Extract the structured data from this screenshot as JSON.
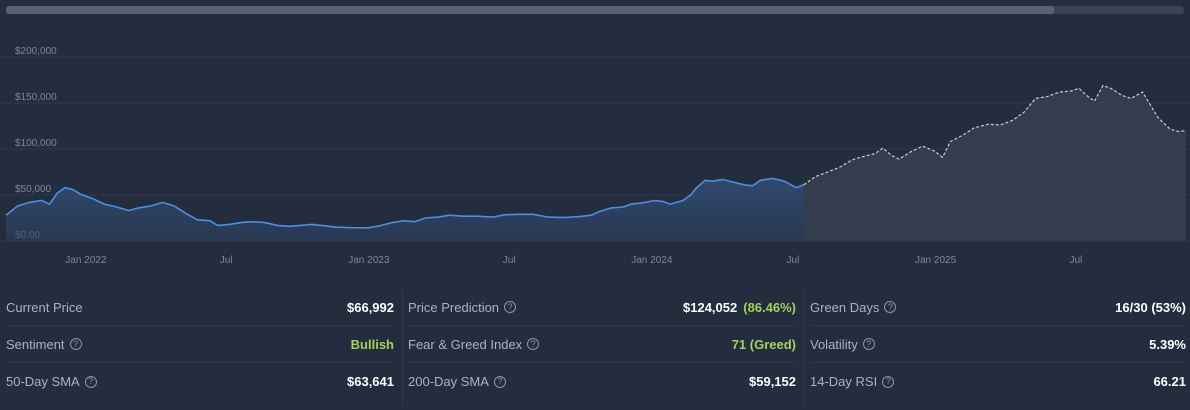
{
  "chart_data": {
    "type": "area",
    "y_ticks": [
      "$0.00",
      "$50,000",
      "$100,000",
      "$150,000",
      "$200,000"
    ],
    "y_tick_values": [
      0,
      50000,
      100000,
      150000,
      200000
    ],
    "ylim": [
      0,
      200000
    ],
    "x_ticks": [
      {
        "label": "Jan 2022",
        "date": "2022-01-01"
      },
      {
        "label": "Jul",
        "date": "2022-07-01"
      },
      {
        "label": "Jan 2023",
        "date": "2023-01-01"
      },
      {
        "label": "Jul",
        "date": "2023-07-01"
      },
      {
        "label": "Jan 2024",
        "date": "2024-01-01"
      },
      {
        "label": "Jul",
        "date": "2024-07-01"
      },
      {
        "label": "Jan 2025",
        "date": "2025-01-01"
      },
      {
        "label": "Jul",
        "date": "2025-07-01"
      }
    ],
    "xlim": [
      "2021-09-20",
      "2025-11-20"
    ],
    "grid": true,
    "series": [
      {
        "role": "historical",
        "style": "solid-area",
        "color": "#4a90e2",
        "points": [
          [
            "2021-09-20",
            28000
          ],
          [
            "2021-10-05",
            38000
          ],
          [
            "2021-10-20",
            42000
          ],
          [
            "2021-11-05",
            44000
          ],
          [
            "2021-11-15",
            40000
          ],
          [
            "2021-11-25",
            52000
          ],
          [
            "2021-12-05",
            58000
          ],
          [
            "2021-12-15",
            56000
          ],
          [
            "2021-12-25",
            51000
          ],
          [
            "2022-01-10",
            46000
          ],
          [
            "2022-01-25",
            40000
          ],
          [
            "2022-02-10",
            37000
          ],
          [
            "2022-02-25",
            33000
          ],
          [
            "2022-03-10",
            36000
          ],
          [
            "2022-03-25",
            38000
          ],
          [
            "2022-04-10",
            42000
          ],
          [
            "2022-04-25",
            38000
          ],
          [
            "2022-05-10",
            30000
          ],
          [
            "2022-05-25",
            23000
          ],
          [
            "2022-06-10",
            22000
          ],
          [
            "2022-06-20",
            17000
          ],
          [
            "2022-07-05",
            18000
          ],
          [
            "2022-07-20",
            20000
          ],
          [
            "2022-08-05",
            21000
          ],
          [
            "2022-08-20",
            20000
          ],
          [
            "2022-09-05",
            17000
          ],
          [
            "2022-09-20",
            16000
          ],
          [
            "2022-10-05",
            17000
          ],
          [
            "2022-10-20",
            18000
          ],
          [
            "2022-11-05",
            16500
          ],
          [
            "2022-11-20",
            15000
          ],
          [
            "2022-12-10",
            14500
          ],
          [
            "2022-12-31",
            14300
          ],
          [
            "2023-01-15",
            16500
          ],
          [
            "2023-01-31",
            20000
          ],
          [
            "2023-02-15",
            22000
          ],
          [
            "2023-03-01",
            21000
          ],
          [
            "2023-03-15",
            25000
          ],
          [
            "2023-04-01",
            26000
          ],
          [
            "2023-04-15",
            28000
          ],
          [
            "2023-05-01",
            27000
          ],
          [
            "2023-05-20",
            27000
          ],
          [
            "2023-06-10",
            26000
          ],
          [
            "2023-06-25",
            28500
          ],
          [
            "2023-07-15",
            29000
          ],
          [
            "2023-08-01",
            29000
          ],
          [
            "2023-08-20",
            26000
          ],
          [
            "2023-09-10",
            25500
          ],
          [
            "2023-09-30",
            26500
          ],
          [
            "2023-10-15",
            28000
          ],
          [
            "2023-10-25",
            32000
          ],
          [
            "2023-11-10",
            36000
          ],
          [
            "2023-11-25",
            37000
          ],
          [
            "2023-12-05",
            40000
          ],
          [
            "2023-12-20",
            41500
          ],
          [
            "2024-01-05",
            44000
          ],
          [
            "2024-01-15",
            43000
          ],
          [
            "2024-01-25",
            40000
          ],
          [
            "2024-02-10",
            44000
          ],
          [
            "2024-02-20",
            50000
          ],
          [
            "2024-02-28",
            58000
          ],
          [
            "2024-03-10",
            66000
          ],
          [
            "2024-03-20",
            65000
          ],
          [
            "2024-04-01",
            67000
          ],
          [
            "2024-04-15",
            64000
          ],
          [
            "2024-04-30",
            61000
          ],
          [
            "2024-05-10",
            60000
          ],
          [
            "2024-05-20",
            66000
          ],
          [
            "2024-06-05",
            68000
          ],
          [
            "2024-06-20",
            65000
          ],
          [
            "2024-07-05",
            58000
          ],
          [
            "2024-07-15",
            61000
          ]
        ]
      },
      {
        "role": "prediction",
        "style": "dashed-area",
        "color": "#c8cdd6",
        "points": [
          [
            "2024-07-15",
            61000
          ],
          [
            "2024-07-30",
            70000
          ],
          [
            "2024-08-15",
            75000
          ],
          [
            "2024-08-30",
            80000
          ],
          [
            "2024-09-15",
            88000
          ],
          [
            "2024-09-30",
            92000
          ],
          [
            "2024-10-15",
            95000
          ],
          [
            "2024-10-25",
            101000
          ],
          [
            "2024-11-05",
            93000
          ],
          [
            "2024-11-15",
            89000
          ],
          [
            "2024-11-30",
            97000
          ],
          [
            "2024-12-15",
            103000
          ],
          [
            "2024-12-30",
            98000
          ],
          [
            "2025-01-10",
            91000
          ],
          [
            "2025-01-20",
            108000
          ],
          [
            "2025-02-05",
            115000
          ],
          [
            "2025-02-20",
            123000
          ],
          [
            "2025-03-10",
            127000
          ],
          [
            "2025-03-25",
            126000
          ],
          [
            "2025-04-10",
            131000
          ],
          [
            "2025-04-25",
            140000
          ],
          [
            "2025-05-10",
            155000
          ],
          [
            "2025-05-25",
            157000
          ],
          [
            "2025-06-10",
            162000
          ],
          [
            "2025-06-25",
            163000
          ],
          [
            "2025-07-05",
            166000
          ],
          [
            "2025-07-15",
            158000
          ],
          [
            "2025-07-25",
            152000
          ],
          [
            "2025-08-05",
            169000
          ],
          [
            "2025-08-15",
            166000
          ],
          [
            "2025-08-30",
            158000
          ],
          [
            "2025-09-10",
            155000
          ],
          [
            "2025-09-25",
            162000
          ],
          [
            "2025-10-05",
            148000
          ],
          [
            "2025-10-15",
            134000
          ],
          [
            "2025-10-30",
            122000
          ],
          [
            "2025-11-10",
            119000
          ],
          [
            "2025-11-20",
            120000
          ]
        ]
      }
    ]
  },
  "stats": {
    "col1": [
      {
        "label": "Current Price",
        "value": "$66,992",
        "help": false
      },
      {
        "label": "Sentiment",
        "value": "Bullish",
        "help": true
      },
      {
        "label": "50-Day SMA",
        "value": "$63,641",
        "help": true
      }
    ],
    "col2": [
      {
        "label": "Price Prediction",
        "value": "$124,052",
        "extra": "(86.46%)",
        "help": true
      },
      {
        "label": "Fear & Greed Index",
        "value": "71 (Greed)",
        "help": true
      },
      {
        "label": "200-Day SMA",
        "value": "$59,152",
        "help": true
      }
    ],
    "col3": [
      {
        "label": "Green Days",
        "value": "16/30 (53%)",
        "help": true
      },
      {
        "label": "Volatility",
        "value": "5.39%",
        "help": true
      },
      {
        "label": "14-Day RSI",
        "value": "66.21",
        "help": true
      }
    ]
  },
  "colors": {
    "background": "#232d3e",
    "positive": "#a3d35a",
    "historical_line": "#4a90e2",
    "prediction_line": "#c8cdd6"
  }
}
